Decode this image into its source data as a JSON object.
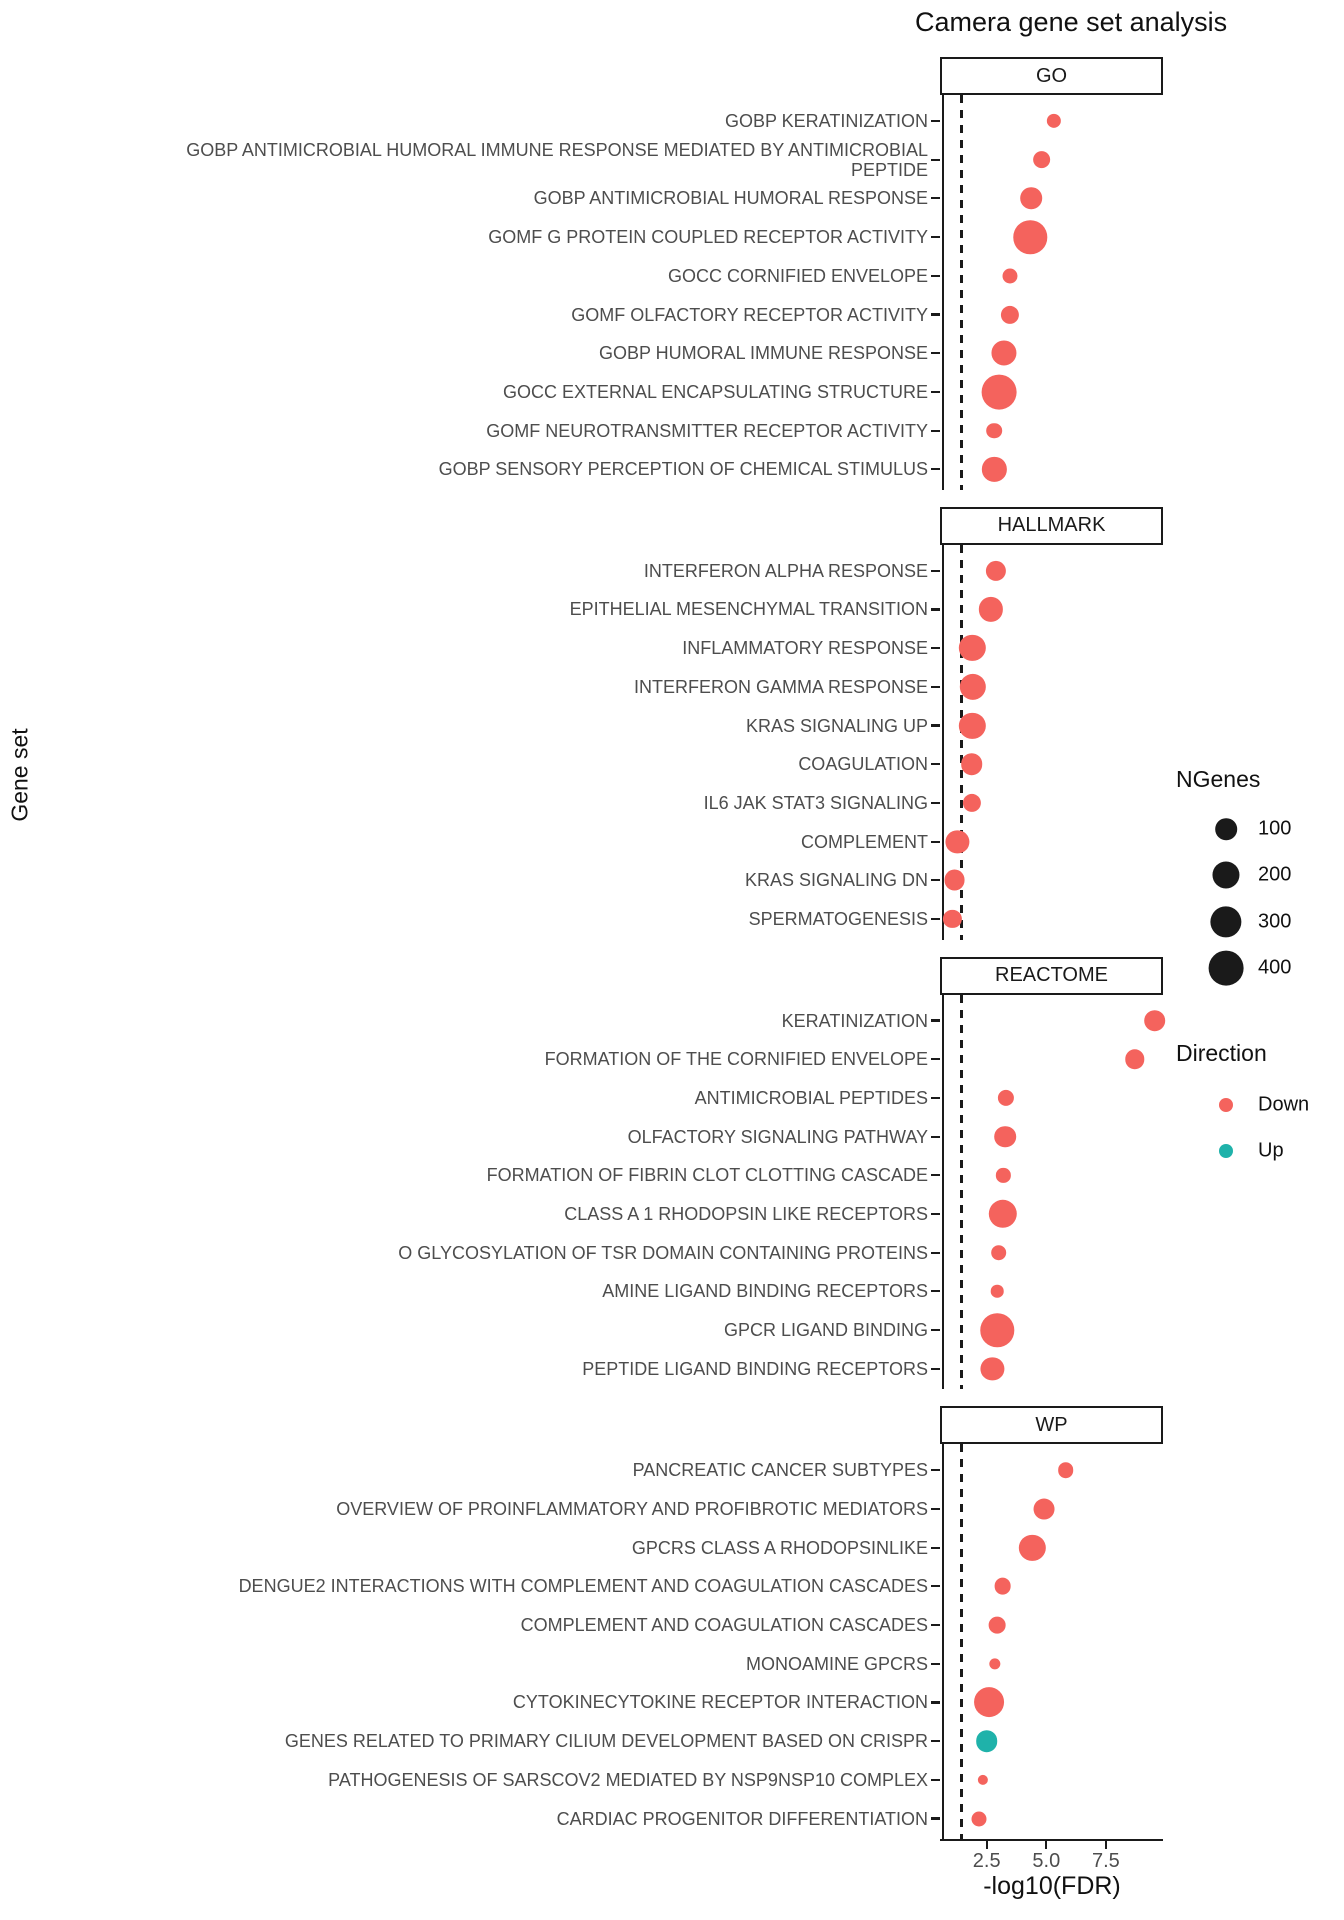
{
  "title": "Camera gene set analysis",
  "y_axis_title": "Gene set",
  "x_axis_title": "-log10(FDR)",
  "colors": {
    "down": "#f4635d",
    "up": "#1fb2aa",
    "axis": "#1a1a1a",
    "axis_text": "#4d4d4d"
  },
  "chart_data": {
    "type": "scatter",
    "xlabel": "-log10(FDR)",
    "ylabel": "Gene set",
    "xlim": [
      0.65,
      9.85
    ],
    "x_ticks": [
      "2.5",
      "5.0",
      "7.5"
    ],
    "x_tick_values": [
      2.5,
      5.0,
      7.5
    ],
    "threshold_x": 1.301,
    "grid": "off",
    "legend_position": "right",
    "size_legend": {
      "title": "NGenes",
      "values": [
        100,
        200,
        300,
        400
      ]
    },
    "direction_legend": {
      "title": "Direction",
      "items": [
        {
          "label": "Down",
          "color": "#f4635d"
        },
        {
          "label": "Up",
          "color": "#1fb2aa"
        }
      ]
    },
    "facets": [
      {
        "label": "GO",
        "rows": [
          {
            "label": "GOBP KERATINIZATION",
            "x": 5.33,
            "ngenes": 20,
            "direction": "Down"
          },
          {
            "label": "GOBP ANTIMICROBIAL HUMORAL IMMUNE RESPONSE MEDIATED BY ANTIMICROBIAL\nPEPTIDE",
            "x": 4.81,
            "ngenes": 50,
            "direction": "Down"
          },
          {
            "label": "GOBP ANTIMICROBIAL HUMORAL RESPONSE",
            "x": 4.37,
            "ngenes": 100,
            "direction": "Down"
          },
          {
            "label": "GOMF G PROTEIN COUPLED RECEPTOR ACTIVITY",
            "x": 4.33,
            "ngenes": 360,
            "direction": "Down"
          },
          {
            "label": "GOCC CORNIFIED ENVELOPE",
            "x": 3.48,
            "ngenes": 25,
            "direction": "Down"
          },
          {
            "label": "GOMF OLFACTORY RECEPTOR ACTIVITY",
            "x": 3.47,
            "ngenes": 55,
            "direction": "Down"
          },
          {
            "label": "GOBP HUMORAL IMMUNE RESPONSE",
            "x": 3.23,
            "ngenes": 160,
            "direction": "Down"
          },
          {
            "label": "GOCC EXTERNAL ENCAPSULATING STRUCTURE",
            "x": 3.03,
            "ngenes": 400,
            "direction": "Down"
          },
          {
            "label": "GOMF NEUROTRANSMITTER RECEPTOR ACTIVITY",
            "x": 2.82,
            "ngenes": 30,
            "direction": "Down"
          },
          {
            "label": "GOBP SENSORY PERCEPTION OF CHEMICAL STIMULUS",
            "x": 2.82,
            "ngenes": 145,
            "direction": "Down"
          }
        ]
      },
      {
        "label": "HALLMARK",
        "rows": [
          {
            "label": "INTERFERON ALPHA RESPONSE",
            "x": 2.89,
            "ngenes": 80,
            "direction": "Down"
          },
          {
            "label": "EPITHELIAL MESENCHYMAL TRANSITION",
            "x": 2.67,
            "ngenes": 145,
            "direction": "Down"
          },
          {
            "label": "INFLAMMATORY RESPONSE",
            "x": 1.89,
            "ngenes": 185,
            "direction": "Down"
          },
          {
            "label": "INTERFERON GAMMA RESPONSE",
            "x": 1.92,
            "ngenes": 185,
            "direction": "Down"
          },
          {
            "label": "KRAS SIGNALING UP",
            "x": 1.89,
            "ngenes": 185,
            "direction": "Down"
          },
          {
            "label": "COAGULATION",
            "x": 1.87,
            "ngenes": 100,
            "direction": "Down"
          },
          {
            "label": "IL6 JAK STAT3 SIGNALING",
            "x": 1.87,
            "ngenes": 55,
            "direction": "Down"
          },
          {
            "label": "COMPLEMENT",
            "x": 1.27,
            "ngenes": 125,
            "direction": "Down"
          },
          {
            "label": "KRAS SIGNALING DN",
            "x": 1.15,
            "ngenes": 90,
            "direction": "Down"
          },
          {
            "label": "SPERMATOGENESIS",
            "x": 1.06,
            "ngenes": 55,
            "direction": "Down"
          }
        ]
      },
      {
        "label": "REACTOME",
        "rows": [
          {
            "label": "KERATINIZATION",
            "x": 9.54,
            "ngenes": 100,
            "direction": "Down"
          },
          {
            "label": "FORMATION OF THE CORNIFIED ENVELOPE",
            "x": 8.7,
            "ngenes": 70,
            "direction": "Down"
          },
          {
            "label": "ANTIMICROBIAL PEPTIDES",
            "x": 3.3,
            "ngenes": 35,
            "direction": "Down"
          },
          {
            "label": "OLFACTORY SIGNALING PATHWAY",
            "x": 3.28,
            "ngenes": 100,
            "direction": "Down"
          },
          {
            "label": "FORMATION OF FIBRIN CLOT CLOTTING CASCADE",
            "x": 3.2,
            "ngenes": 20,
            "direction": "Down"
          },
          {
            "label": "CLASS A 1 RHODOPSIN LIKE RECEPTORS",
            "x": 3.17,
            "ngenes": 230,
            "direction": "Down"
          },
          {
            "label": "O GLYCOSYLATION OF TSR DOMAIN CONTAINING PROTEINS",
            "x": 3.0,
            "ngenes": 30,
            "direction": "Down"
          },
          {
            "label": "AMINE LIGAND BINDING RECEPTORS",
            "x": 2.95,
            "ngenes": 10,
            "direction": "Down"
          },
          {
            "label": "GPCR LIGAND BINDING",
            "x": 2.95,
            "ngenes": 360,
            "direction": "Down"
          },
          {
            "label": "PEPTIDE LIGAND BINDING RECEPTORS",
            "x": 2.74,
            "ngenes": 125,
            "direction": "Down"
          }
        ]
      },
      {
        "label": "WP",
        "rows": [
          {
            "label": "PANCREATIC CANCER SUBTYPES",
            "x": 5.82,
            "ngenes": 30,
            "direction": "Down"
          },
          {
            "label": "OVERVIEW OF PROINFLAMMATORY AND PROFIBROTIC MEDIATORS",
            "x": 4.91,
            "ngenes": 90,
            "direction": "Down"
          },
          {
            "label": "GPCRS CLASS A RHODOPSINLIKE",
            "x": 4.42,
            "ngenes": 185,
            "direction": "Down"
          },
          {
            "label": "DENGUE2 INTERACTIONS WITH COMPLEMENT AND COAGULATION CASCADES",
            "x": 3.17,
            "ngenes": 40,
            "direction": "Down"
          },
          {
            "label": "COMPLEMENT AND COAGULATION CASCADES",
            "x": 2.95,
            "ngenes": 40,
            "direction": "Down"
          },
          {
            "label": "MONOAMINE GPCRS",
            "x": 2.84,
            "ngenes": 5,
            "direction": "Down"
          },
          {
            "label": "CYTOKINECYTOKINE RECEPTOR INTERACTION",
            "x": 2.61,
            "ngenes": 265,
            "direction": "Down"
          },
          {
            "label": "GENES RELATED TO PRIMARY CILIUM DEVELOPMENT BASED ON CRISPR",
            "x": 2.5,
            "ngenes": 100,
            "direction": "Up"
          },
          {
            "label": "PATHOGENESIS OF SARSCOV2 MEDIATED BY NSP9NSP10 COMPLEX",
            "x": 2.33,
            "ngenes": 2,
            "direction": "Down"
          },
          {
            "label": "CARDIAC PROGENITOR DIFFERENTIATION",
            "x": 2.18,
            "ngenes": 25,
            "direction": "Down"
          }
        ]
      }
    ]
  }
}
